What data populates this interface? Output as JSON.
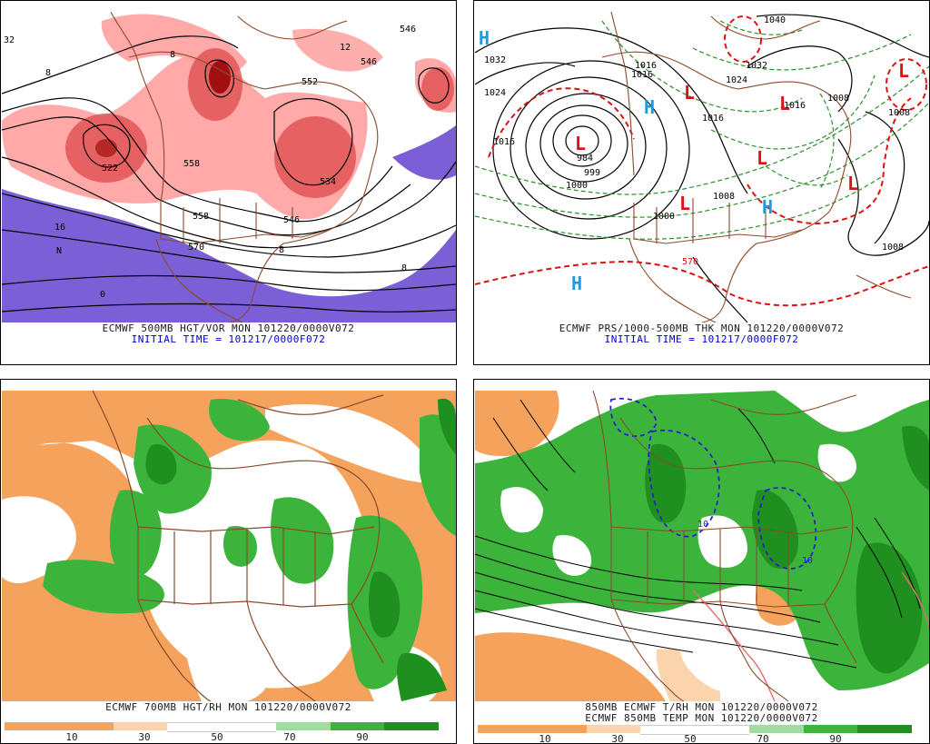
{
  "panels": {
    "p1": {
      "caption": "ECMWF 500MB HGT/VOR MON 101220/0000V072",
      "initial": "INITIAL TIME = 101217/0000F072",
      "labels": [
        "32",
        "546",
        "558",
        "552",
        "570",
        "558",
        "546",
        "534",
        "522",
        "8",
        "N",
        "8",
        "8",
        "12",
        "8",
        "0",
        "16",
        "546"
      ]
    },
    "p2": {
      "caption": "ECMWF PRS/1000-500MB THK MON 101220/0000V072",
      "initial": "INITIAL TIME = 101217/0000F072",
      "labels": [
        "1040",
        "1032",
        "1024",
        "1016",
        "1016",
        "1024",
        "1032",
        "1016",
        "1008",
        "1008",
        "1000",
        "999",
        "984",
        "1000",
        "1008",
        "1016",
        "1016",
        "570",
        "1008"
      ],
      "symbols": [
        "H",
        "H",
        "H",
        "H",
        "L",
        "L",
        "L",
        "L",
        "L",
        "L",
        "L"
      ]
    },
    "p3": {
      "caption": "ECMWF 700MB HGT/RH MON 101220/0000V072",
      "scale_ticks": [
        "10",
        "30",
        "50",
        "70",
        "90"
      ]
    },
    "p4": {
      "caption_line1": "850MB ECMWF T/RH MON 101220/0000V072",
      "caption_line2": "ECMWF 850MB TEMP MON 101220/0000V072",
      "scale_ticks": [
        "10",
        "30",
        "50",
        "70",
        "90"
      ],
      "labels": [
        "10",
        "10"
      ]
    }
  },
  "colors": {
    "vorticity_light": "#ff9a9a",
    "vorticity_mid": "#e05050",
    "vorticity_dark": "#a01010",
    "vorticity_neg": "#7b5fd6",
    "map_outline": "#8b4a2b",
    "contour": "#000000",
    "thickness_warm": "#dd1111",
    "thickness_cold": "#2a8f2a",
    "high_symbol": "#1e9ae0",
    "low_symbol": "#dd1111",
    "dry": "#f5a25d",
    "moist": "#3cb43c",
    "very_moist": "#1f8f1f",
    "scale": [
      "#f5a25d",
      "#f5a25d",
      "#fbd3ad",
      "#ffffff",
      "#ffffff",
      "#9fdc9f",
      "#3cb43c",
      "#1f8f1f"
    ]
  }
}
